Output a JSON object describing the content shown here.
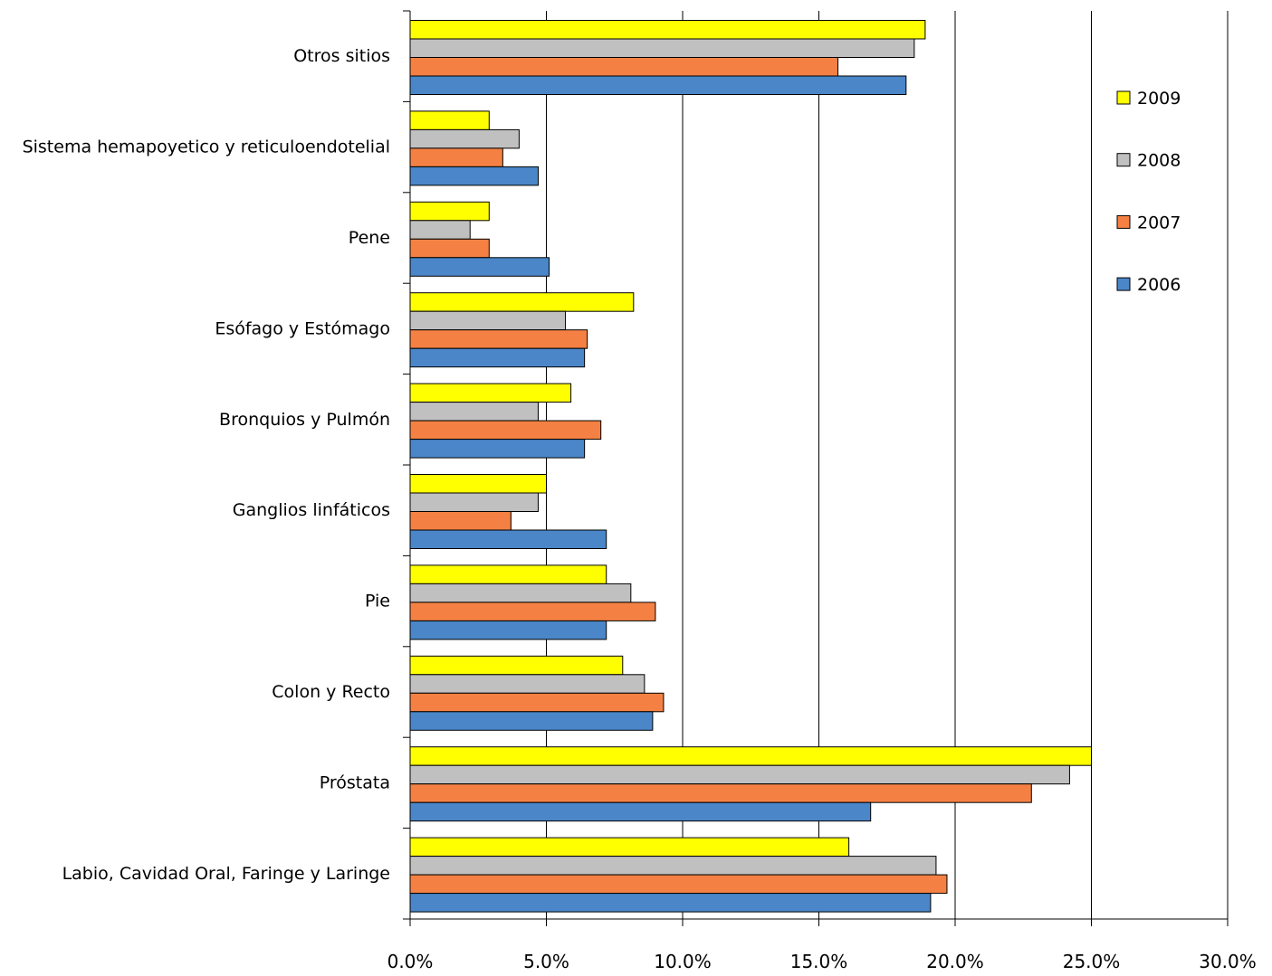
{
  "chart_data": {
    "type": "bar",
    "orientation": "horizontal",
    "title": "",
    "xlabel": "",
    "ylabel": "",
    "xlim": [
      0,
      30
    ],
    "x_tick_labels": [
      "0.0%",
      "5.0%",
      "10.0%",
      "15.0%",
      "20.0%",
      "25.0%",
      "30.0%"
    ],
    "grid": "vertical",
    "legend_position": "right",
    "categories": [
      "Otros sitios",
      "Sistema hemapoyetico y reticuloendotelial",
      "Pene",
      "Esófago y Estómago",
      "Bronquios y Pulmón",
      "Ganglios linfáticos",
      "Pie",
      "Colon y Recto",
      "Próstata",
      "Labio, Cavidad Oral, Faringe y Laringe"
    ],
    "series": [
      {
        "name": "2009",
        "color": "#ffff00",
        "values": [
          18.9,
          2.9,
          2.9,
          8.2,
          5.9,
          5.0,
          7.2,
          7.8,
          25.0,
          16.1
        ]
      },
      {
        "name": "2008",
        "color": "#c0c0c0",
        "values": [
          18.5,
          4.0,
          2.2,
          5.7,
          4.7,
          4.7,
          8.1,
          8.6,
          24.2,
          19.3
        ]
      },
      {
        "name": "2007",
        "color": "#f48143",
        "values": [
          15.7,
          3.4,
          2.9,
          6.5,
          7.0,
          3.7,
          9.0,
          9.3,
          22.8,
          19.7
        ]
      },
      {
        "name": "2006",
        "color": "#4a86c8",
        "values": [
          18.2,
          4.7,
          5.1,
          6.4,
          6.4,
          7.2,
          7.2,
          8.9,
          16.9,
          19.1
        ]
      }
    ],
    "legend_entries": [
      "2009",
      "2008",
      "2007",
      "2006"
    ]
  }
}
